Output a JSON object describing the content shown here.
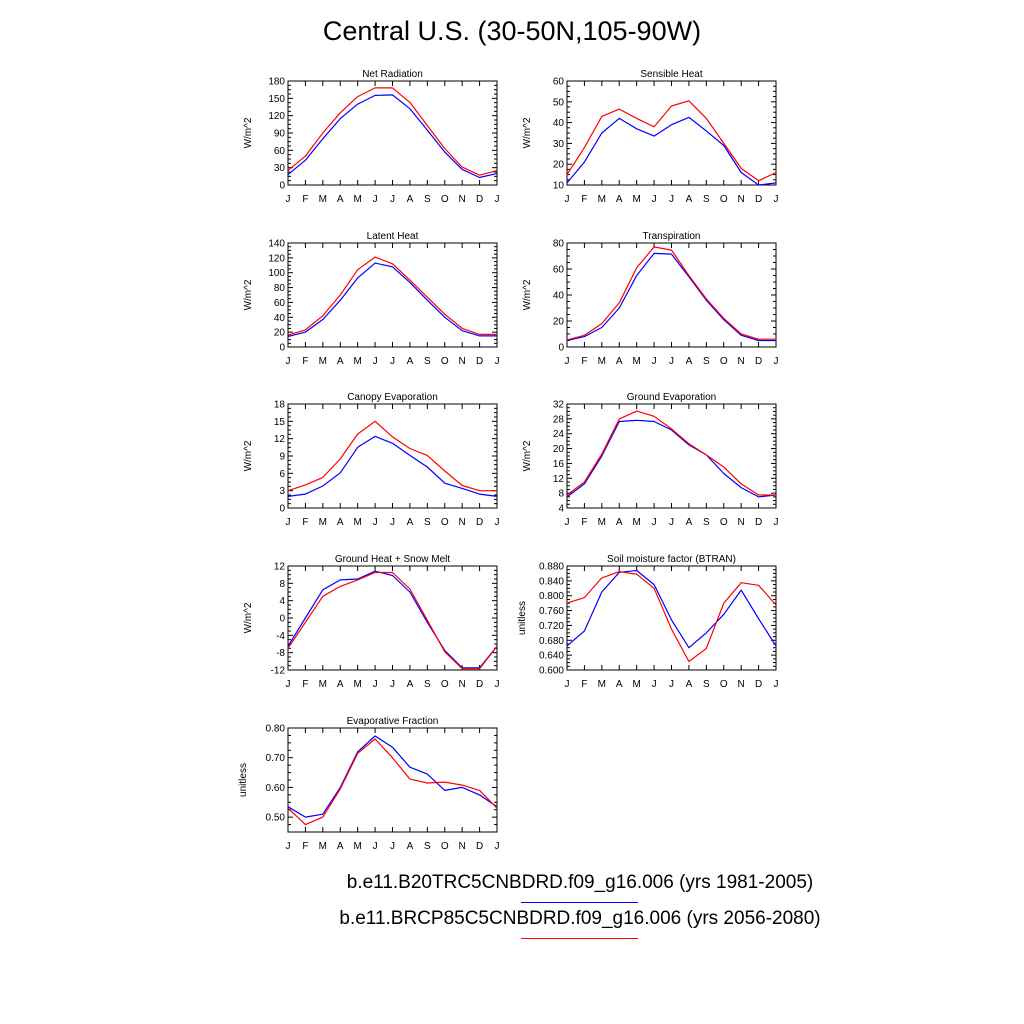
{
  "title": "Central U.S. (30-50N,105-90W)",
  "months": [
    "J",
    "F",
    "M",
    "A",
    "M",
    "J",
    "J",
    "A",
    "S",
    "O",
    "N",
    "D",
    "J"
  ],
  "colors": {
    "blue": "#0000ff",
    "red": "#ff0000"
  },
  "legend": [
    {
      "label": "b.e11.B20TRC5CNBDRD.f09_g16.006 (yrs 1981-2005)",
      "color": "#0000ff"
    },
    {
      "label": "b.e11.BRCP85C5CNBDRD.f09_g16.006 (yrs 2056-2080)",
      "color": "#ff0000"
    }
  ],
  "chart_data": [
    {
      "type": "line",
      "title": "Net Radiation",
      "ylabel": "W/m^2",
      "ylim": [
        0,
        180
      ],
      "yticks": [
        "0",
        "30",
        "60",
        "90",
        "120",
        "150",
        "180"
      ],
      "series": [
        {
          "color": "blue",
          "values": [
            18,
            43,
            80,
            115,
            140,
            155,
            156,
            132,
            95,
            57,
            27,
            13,
            20
          ]
        },
        {
          "color": "red",
          "values": [
            25,
            50,
            90,
            125,
            153,
            168,
            168,
            143,
            103,
            63,
            31,
            17,
            25
          ]
        }
      ]
    },
    {
      "type": "line",
      "title": "Sensible Heat",
      "ylabel": "W/m^2",
      "ylim": [
        10,
        60
      ],
      "yticks": [
        "10",
        "20",
        "30",
        "40",
        "50",
        "60"
      ],
      "series": [
        {
          "color": "blue",
          "values": [
            11,
            21,
            35,
            42,
            37,
            33.5,
            39,
            42.5,
            36,
            29,
            16,
            10,
            11
          ]
        },
        {
          "color": "red",
          "values": [
            15,
            28,
            43,
            46.5,
            42,
            38,
            48,
            50.5,
            42,
            30,
            18,
            12,
            16
          ]
        }
      ]
    },
    {
      "type": "line",
      "title": "Latent Heat",
      "ylabel": "W/m^2",
      "ylim": [
        0,
        140
      ],
      "yticks": [
        "0",
        "20",
        "40",
        "60",
        "80",
        "100",
        "120",
        "140"
      ],
      "series": [
        {
          "color": "blue",
          "values": [
            14,
            20,
            37,
            63,
            93,
            113,
            108,
            87,
            63,
            40,
            22,
            15,
            15
          ]
        },
        {
          "color": "red",
          "values": [
            16,
            23,
            42,
            70,
            104,
            121,
            112,
            90,
            67,
            44,
            25,
            17,
            17
          ]
        }
      ]
    },
    {
      "type": "line",
      "title": "Transpiration",
      "ylabel": "W/m^2",
      "ylim": [
        0,
        80
      ],
      "yticks": [
        "0",
        "20",
        "40",
        "60",
        "80"
      ],
      "series": [
        {
          "color": "blue",
          "values": [
            5,
            8,
            15,
            30,
            55,
            72,
            71.5,
            54,
            36,
            21,
            9,
            5,
            5
          ]
        },
        {
          "color": "red",
          "values": [
            5.5,
            9,
            18,
            34,
            61,
            77,
            74.5,
            55,
            37,
            22,
            10,
            6,
            6
          ]
        }
      ]
    },
    {
      "type": "line",
      "title": "Canopy Evaporation",
      "ylabel": "W/m^2",
      "ylim": [
        0,
        18
      ],
      "yticks": [
        "0",
        "3",
        "6",
        "9",
        "12",
        "15",
        "18"
      ],
      "series": [
        {
          "color": "blue",
          "values": [
            2,
            2.4,
            3.8,
            6.1,
            10.5,
            12.4,
            11.2,
            9.1,
            7.1,
            4.3,
            3.4,
            2.4,
            2
          ]
        },
        {
          "color": "red",
          "values": [
            3,
            4,
            5.3,
            8.5,
            12.8,
            15,
            12.3,
            10.3,
            9.1,
            6.4,
            3.9,
            3,
            3
          ]
        }
      ]
    },
    {
      "type": "line",
      "title": "Ground Evaporation",
      "ylabel": "W/m^2",
      "ylim": [
        4,
        32
      ],
      "yticks": [
        "4",
        "8",
        "12",
        "16",
        "20",
        "24",
        "28",
        "32"
      ],
      "series": [
        {
          "color": "blue",
          "values": [
            7,
            10.5,
            18,
            27.3,
            27.6,
            27.3,
            25,
            21,
            18.3,
            13.3,
            9.5,
            7,
            7.5
          ]
        },
        {
          "color": "red",
          "values": [
            7.5,
            11,
            18.5,
            28,
            30.1,
            28.7,
            25.3,
            21.3,
            18.3,
            15,
            10.5,
            7.5,
            7.5
          ]
        }
      ]
    },
    {
      "type": "line",
      "title": "Ground Heat + Snow Melt",
      "ylabel": "W/m^2",
      "ylim": [
        -12,
        12
      ],
      "yticks": [
        "-12",
        "-8",
        "-4",
        "0",
        "4",
        "8",
        "12"
      ],
      "series": [
        {
          "color": "blue",
          "values": [
            -6.5,
            0,
            6.5,
            8.8,
            9,
            10.8,
            9.8,
            6,
            -1,
            -7.5,
            -11.5,
            -11.5,
            -6.5
          ]
        },
        {
          "color": "red",
          "values": [
            -7,
            -1,
            5,
            7.3,
            8.8,
            10.5,
            10.5,
            6.7,
            -0.5,
            -7.8,
            -11.7,
            -11.7,
            -6.5
          ]
        }
      ]
    },
    {
      "type": "line",
      "title": "Soil moisture factor (BTRAN)",
      "ylabel": "unitless",
      "ylim": [
        0.6,
        0.88
      ],
      "yticks": [
        "0.600",
        "0.640",
        "0.680",
        "0.720",
        "0.760",
        "0.800",
        "0.840",
        "0.880"
      ],
      "series": [
        {
          "color": "blue",
          "values": [
            0.665,
            0.705,
            0.81,
            0.863,
            0.868,
            0.83,
            0.735,
            0.66,
            0.7,
            0.75,
            0.815,
            0.738,
            0.665
          ]
        },
        {
          "color": "red",
          "values": [
            0.78,
            0.795,
            0.848,
            0.865,
            0.858,
            0.82,
            0.71,
            0.623,
            0.658,
            0.78,
            0.835,
            0.828,
            0.775
          ]
        }
      ]
    },
    {
      "type": "line",
      "title": "Evaporative Fraction",
      "ylabel": "unitless",
      "ylim": [
        0.45,
        0.8
      ],
      "yticks": [
        "0.50",
        "0.60",
        "0.70",
        "0.80"
      ],
      "series": [
        {
          "color": "blue",
          "values": [
            0.535,
            0.5,
            0.51,
            0.6,
            0.72,
            0.773,
            0.735,
            0.668,
            0.645,
            0.59,
            0.6,
            0.575,
            0.535
          ]
        },
        {
          "color": "red",
          "values": [
            0.53,
            0.475,
            0.5,
            0.595,
            0.715,
            0.763,
            0.7,
            0.628,
            0.615,
            0.618,
            0.608,
            0.59,
            0.53
          ]
        }
      ]
    }
  ]
}
